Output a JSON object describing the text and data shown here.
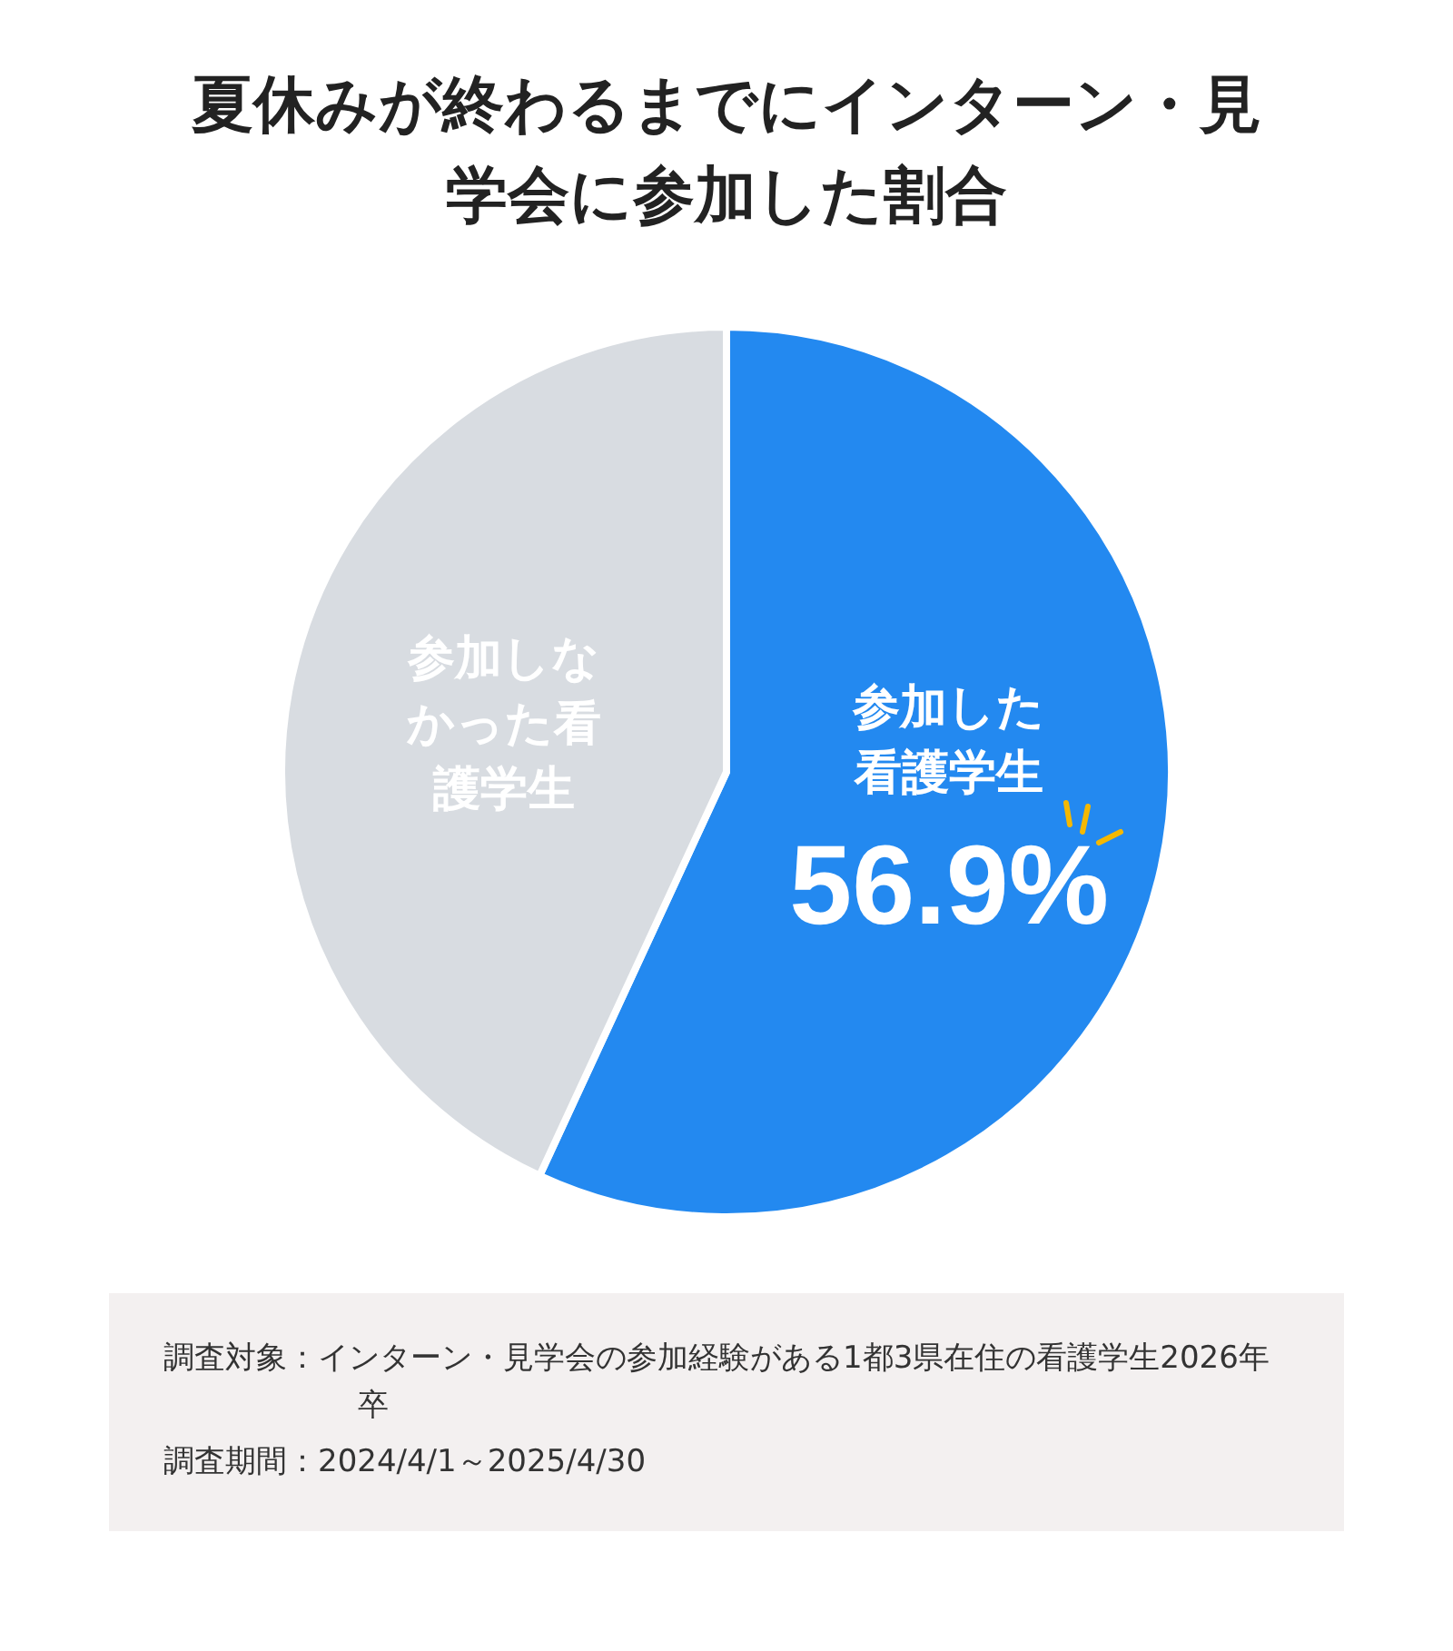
{
  "chart_data": {
    "type": "pie",
    "title": "夏休みが終わるまでにインターン・見学会に参加した割合",
    "categories": [
      "参加した看護学生",
      "参加しなかった看護学生"
    ],
    "values": [
      56.9,
      43.1
    ],
    "colors": [
      "#2389f0",
      "#d8dce1"
    ],
    "value_labels": [
      "56.9%",
      null
    ],
    "legend": false,
    "annotations": [
      "調査対象：インターン・見学会の参加経験がある1都3県在住の看護学生2026年卒",
      "調査期間：2024/4/1～2025/4/30"
    ]
  }
}
